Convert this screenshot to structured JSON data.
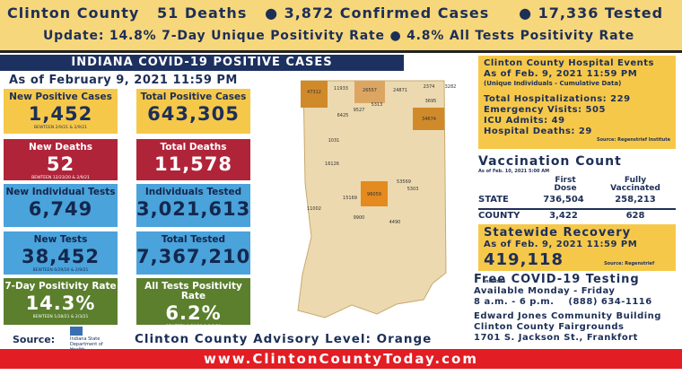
{
  "header": {
    "line1": {
      "county": "Clinton County",
      "deaths": "51 Deaths",
      "confirmed": "● 3,872 Confirmed Cases",
      "tested": "● 17,336 Tested"
    },
    "line2": "Update: 14.8% 7-Day Unique Positivity Rate ● 4.8% All Tests Positivity Rate"
  },
  "banner": "INDIANA COVID-19 POSITIVE CASES",
  "as_of": "As of February 9, 2021 11:59 PM",
  "tiles": [
    {
      "label": "New Positive Cases",
      "value": "1,452",
      "note": "BEWTEEN 2/9/21 & 2/9/21"
    },
    {
      "label": "Total Positive Cases",
      "value": "643,305"
    },
    {
      "label": "New Deaths",
      "value": "52",
      "note": "BEWTEEN 12/23/20 & 2/9/21"
    },
    {
      "label": "Total Deaths",
      "value": "11,578"
    },
    {
      "label": "New Individual Tests",
      "value": "6,749"
    },
    {
      "label": "Individuals Tested",
      "value": "3,021,613"
    },
    {
      "label": "New Tests",
      "value": "38,452",
      "note": "BEWTEEN 6/29/20 & 2/9/21"
    },
    {
      "label": "Total Tested",
      "value": "7,367,210"
    },
    {
      "label": "7-Day Positivity Rate",
      "value": "14.3%",
      "note": "BEWTEEN 1/28/21 & 2/3/21"
    },
    {
      "label": "All Tests Positivity Rate",
      "value": "6.2%",
      "note": "BEWTEEN 1/28/20 & 2/3/21"
    }
  ],
  "source": "Source:",
  "logo": "Indiana State Department of Health",
  "advisory": "Clinton County Advisory Level: Orange",
  "website": "www.ClintonCountyToday.com",
  "map": {
    "labels": [
      "47312",
      "11933",
      "9527",
      "26557",
      "24871",
      "2374",
      "3282",
      "6425",
      "5313",
      "3695",
      "34674",
      "1031",
      "16126",
      "96059",
      "53569",
      "15169",
      "11002",
      "9900",
      "4490",
      "5303"
    ]
  },
  "hospital": {
    "title": "Clinton County Hospital Events",
    "as_of": "As of Feb. 9, 2021 11:59 PM",
    "sub": "(Unique Individuals - Cumulative Data)",
    "items": [
      "Total Hospitalizations: 229",
      "Emergency Visits: 505",
      "ICU Admits: 49",
      "Hospital Deaths: 29"
    ],
    "source": "Source: Regenstrief Institute"
  },
  "vaccination": {
    "title": "Vaccination Count",
    "as_of": "As of Feb. 10, 2021 5:00 AM",
    "cols": [
      "First Dose",
      "Fully Vaccinated"
    ],
    "rows": [
      [
        "STATE",
        "736,504",
        "258,213"
      ],
      [
        "COUNTY",
        "3,422",
        "628"
      ]
    ]
  },
  "recovery": {
    "title": "Statewide Recovery",
    "as_of": "As of Feb. 9, 2021 11:59 PM",
    "value": "419,118",
    "source": "Source: Regenstrief Institute"
  },
  "testing": {
    "title": "Free COVID-19 Testing",
    "days": "Available Monday - Friday",
    "hours": "8 a.m. - 6 p.m.",
    "phone": "(888) 634-1116",
    "place": [
      "Edward Jones Community Building",
      "Clinton County Fairgrounds",
      "1701 S. Jackson St., Frankfort"
    ]
  }
}
